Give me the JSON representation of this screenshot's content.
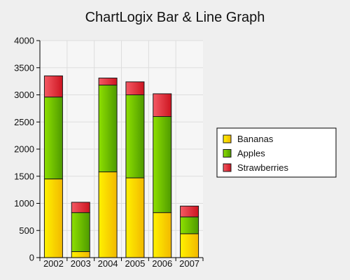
{
  "chart_data": {
    "type": "bar",
    "stacked": true,
    "title": "ChartLogix Bar & Line Graph",
    "categories": [
      "2002",
      "2003",
      "2004",
      "2005",
      "2006",
      "2007"
    ],
    "series": [
      {
        "name": "Bananas",
        "values": [
          1450,
          110,
          1580,
          1470,
          830,
          440
        ],
        "color": "#f5d800"
      },
      {
        "name": "Apples",
        "values": [
          1510,
          720,
          1600,
          1530,
          1770,
          310
        ],
        "color": "#7acc00"
      },
      {
        "name": "Strawberries",
        "values": [
          390,
          190,
          130,
          240,
          420,
          200
        ],
        "color": "#e8323c"
      }
    ],
    "ylim": [
      0,
      4000
    ],
    "yticks": [
      0,
      500,
      1000,
      1500,
      2000,
      2500,
      3000,
      3500,
      4000
    ],
    "grid": true,
    "legend_position": "right"
  }
}
